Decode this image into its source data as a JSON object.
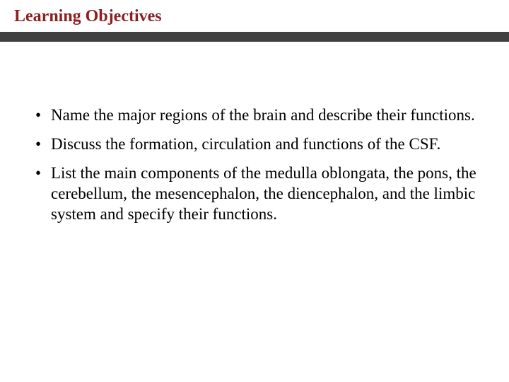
{
  "slide": {
    "title": "Learning Objectives",
    "title_color": "#8b2020",
    "title_fontsize": 24,
    "underline_color": "#404040",
    "underline_height": 14,
    "body_fontsize": 23,
    "body_color": "#000000",
    "background_color": "#ffffff",
    "bullets": [
      "Name the major regions of the brain and describe their functions.",
      "Discuss the formation, circulation and functions of the CSF.",
      "List the main components of the medulla oblongata, the pons, the cerebellum, the mesencephalon, the diencephalon, and the limbic system and specify their functions."
    ]
  }
}
